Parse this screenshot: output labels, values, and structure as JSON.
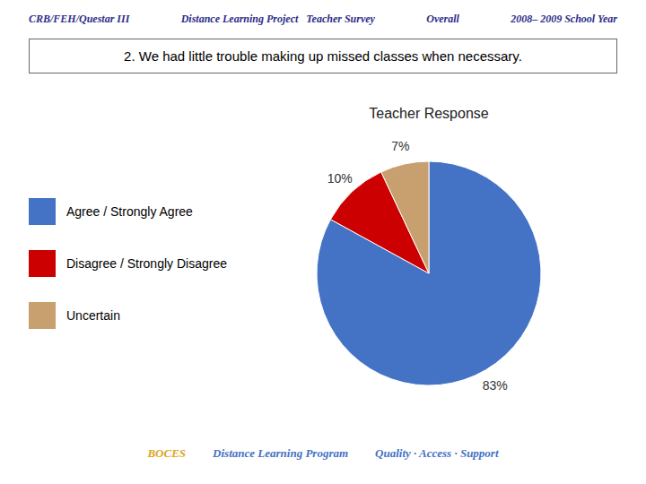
{
  "chart_data": {
    "type": "pie",
    "title": "Teacher Response",
    "subtitle": "2. We had little trouble making up missed classes when necessary.",
    "annotations": [
      "CRB/FEH/Questar III",
      "Distance Learning Project   Teacher Survey",
      "Overall",
      "2008– 2009 School Year",
      "BOCES",
      "Distance Learning Program",
      "Quality · Access · Support"
    ],
    "categories": [
      "Agree / Strongly Agree",
      "Disagree / Strongly Disagree",
      "Uncertain"
    ],
    "values": [
      83,
      10,
      7
    ],
    "value_labels": [
      "83%",
      "10%",
      "7%"
    ],
    "colors": [
      "#4472C4",
      "#CC0000",
      "#C8A070"
    ],
    "data_labels": true,
    "legend": "left"
  }
}
